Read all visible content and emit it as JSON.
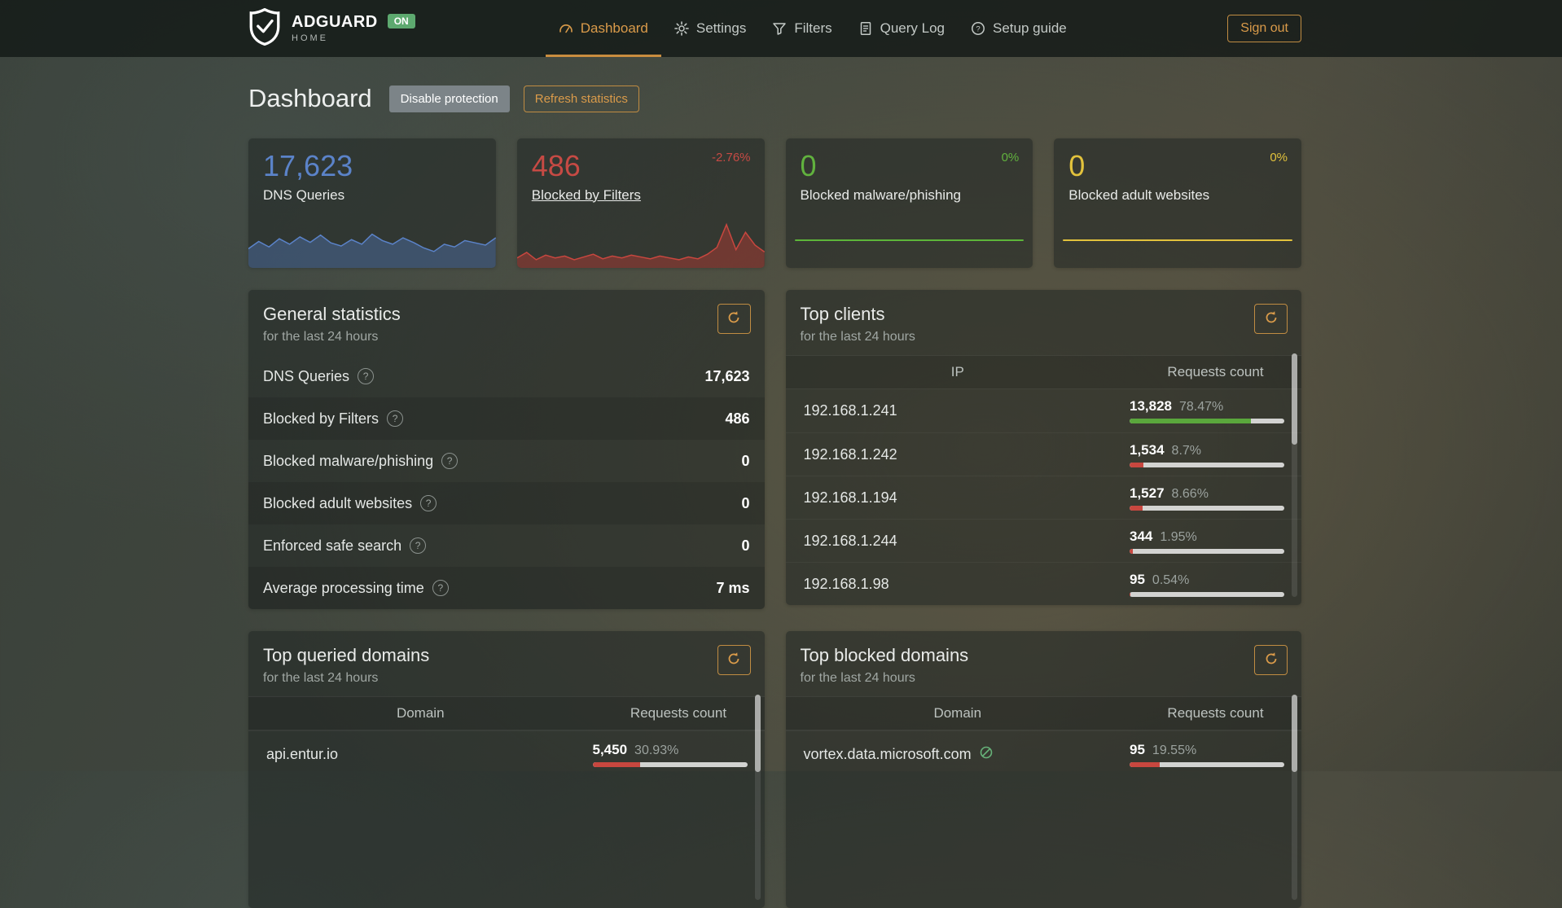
{
  "navbar": {
    "brand": {
      "title": "ADGUARD",
      "subtitle": "HOME",
      "status_badge": "ON"
    },
    "items": [
      {
        "label": "Dashboard"
      },
      {
        "label": "Settings"
      },
      {
        "label": "Filters"
      },
      {
        "label": "Query Log"
      },
      {
        "label": "Setup guide"
      }
    ],
    "sign_out_label": "Sign out"
  },
  "header": {
    "title": "Dashboard",
    "disable_protection_label": "Disable protection",
    "refresh_statistics_label": "Refresh statistics"
  },
  "colors": {
    "accent": "#da9b4a",
    "blue": "#5b83c9",
    "red": "#c64a44",
    "green": "#61b23e",
    "yellow": "#e2c23c"
  },
  "stat_cards": [
    {
      "value": "17,623",
      "label": "DNS Queries",
      "trend": "",
      "stroke": "#5b83c9",
      "fill": "rgba(79,115,176,0.45)",
      "spark": [
        0.42,
        0.58,
        0.46,
        0.64,
        0.52,
        0.68,
        0.56,
        0.72,
        0.55,
        0.48,
        0.62,
        0.52,
        0.74,
        0.6,
        0.52,
        0.66,
        0.56,
        0.44,
        0.36,
        0.52,
        0.46,
        0.6,
        0.55,
        0.5,
        0.66
      ]
    },
    {
      "value": "486",
      "label": "Blocked by Filters",
      "trend": "-2.76%",
      "stroke": "#c8473f",
      "fill": "rgba(187,60,54,0.45)",
      "spark": [
        0.22,
        0.34,
        0.18,
        0.28,
        0.22,
        0.26,
        0.18,
        0.24,
        0.3,
        0.2,
        0.26,
        0.22,
        0.28,
        0.24,
        0.2,
        0.26,
        0.22,
        0.18,
        0.24,
        0.2,
        0.3,
        0.45,
        0.95,
        0.4,
        0.78,
        0.5,
        0.35
      ]
    },
    {
      "value": "0",
      "label": "Blocked malware/phishing",
      "trend": "0%"
    },
    {
      "value": "0",
      "label": "Blocked adult websites",
      "trend": "0%"
    }
  ],
  "general_statistics": {
    "title": "General statistics",
    "subtitle": "for the last 24 hours",
    "rows": [
      {
        "label": "DNS Queries",
        "value": "17,623"
      },
      {
        "label": "Blocked by Filters",
        "value": "486"
      },
      {
        "label": "Blocked malware/phishing",
        "value": "0"
      },
      {
        "label": "Blocked adult websites",
        "value": "0"
      },
      {
        "label": "Enforced safe search",
        "value": "0"
      },
      {
        "label": "Average processing time",
        "value": "7 ms"
      }
    ]
  },
  "top_clients": {
    "title": "Top clients",
    "subtitle": "for the last 24 hours",
    "col_ip": "IP",
    "col_count": "Requests count",
    "rows": [
      {
        "ip": "192.168.1.241",
        "count": "13,828",
        "percent": "78.47%",
        "fraction": 0.7847,
        "color": "#5aa73c"
      },
      {
        "ip": "192.168.1.242",
        "count": "1,534",
        "percent": "8.7%",
        "fraction": 0.087,
        "color": "#c8473f"
      },
      {
        "ip": "192.168.1.194",
        "count": "1,527",
        "percent": "8.66%",
        "fraction": 0.0866,
        "color": "#c8473f"
      },
      {
        "ip": "192.168.1.244",
        "count": "344",
        "percent": "1.95%",
        "fraction": 0.0195,
        "color": "#c8473f"
      },
      {
        "ip": "192.168.1.98",
        "count": "95",
        "percent": "0.54%",
        "fraction": 0.0054,
        "color": "#c8473f"
      }
    ]
  },
  "top_queried_domains": {
    "title": "Top queried domains",
    "subtitle": "for the last 24 hours",
    "col_domain": "Domain",
    "col_count": "Requests count",
    "rows": [
      {
        "domain": "api.entur.io",
        "count": "5,450",
        "percent": "30.93%",
        "fraction": 0.3093,
        "color": "#c8473f"
      }
    ]
  },
  "top_blocked_domains": {
    "title": "Top blocked domains",
    "subtitle": "for the last 24 hours",
    "col_domain": "Domain",
    "col_count": "Requests count",
    "rows": [
      {
        "domain": "vortex.data.microsoft.com",
        "count": "95",
        "percent": "19.55%",
        "fraction": 0.1955,
        "color": "#c8473f"
      }
    ]
  }
}
